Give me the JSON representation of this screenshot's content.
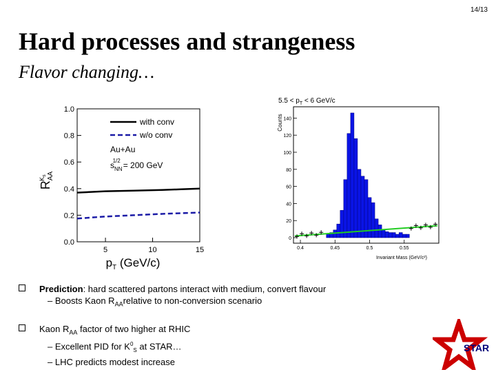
{
  "slide": {
    "page_number": "14/13",
    "title": "Hard processes and strangeness",
    "subtitle": "Flavor changing…"
  },
  "chart_data": [
    {
      "type": "line",
      "ylabel": "R_AA^Ks",
      "xlabel": "pT (GeV/c)",
      "xlim": [
        2,
        15
      ],
      "ylim": [
        0.0,
        1.0
      ],
      "x_ticks": [
        "5",
        "10",
        "15"
      ],
      "y_ticks": [
        "0.0",
        "0.2",
        "0.4",
        "0.6",
        "0.8",
        "1.0"
      ],
      "legend": [
        "with conv",
        "w/o conv"
      ],
      "annotations": [
        "Au+Au",
        "s_NN^1/2 = 200 GeV"
      ],
      "series": [
        {
          "name": "with conv",
          "x": [
            2,
            5,
            8,
            11,
            13,
            15
          ],
          "values": [
            0.37,
            0.38,
            0.385,
            0.39,
            0.395,
            0.4
          ]
        },
        {
          "name": "w/o conv",
          "x": [
            2,
            5,
            8,
            11,
            13,
            15
          ],
          "values": [
            0.175,
            0.19,
            0.2,
            0.21,
            0.215,
            0.22
          ]
        }
      ]
    },
    {
      "type": "bar",
      "title": "5.5 < pT < 6 GeV/c",
      "ylabel": "Counts",
      "xlabel": "Invariant Mass (GeV/c²)",
      "xlim": [
        0.4,
        0.6
      ],
      "ylim": [
        0,
        150
      ],
      "x_ticks": [
        "0.4",
        "0.45",
        "0.5",
        "0.55"
      ],
      "y_ticks": [
        "0",
        "20",
        "40",
        "60",
        "80",
        "100",
        "120",
        "140"
      ],
      "categories": [
        "0.440",
        "0.445",
        "0.450",
        "0.455",
        "0.460",
        "0.465",
        "0.470",
        "0.475",
        "0.480",
        "0.485",
        "0.490",
        "0.495",
        "0.500",
        "0.505",
        "0.510",
        "0.515",
        "0.520",
        "0.525",
        "0.530",
        "0.535",
        "0.540",
        "0.545",
        "0.550",
        "0.555"
      ],
      "values": [
        4,
        6,
        9,
        16,
        32,
        68,
        122,
        146,
        116,
        80,
        72,
        68,
        47,
        41,
        22,
        15,
        9,
        7,
        6,
        6,
        4,
        6,
        4,
        4
      ],
      "background_fit": [
        2,
        14
      ]
    }
  ],
  "bullets": [
    {
      "bold": "Prediction",
      "text": ": hard scattered partons interact with medium, convert flavour",
      "subs": [
        {
          "pre": "– Boosts Kaon R",
          "sub": "AA",
          "post": "relative to non-conversion scenario"
        }
      ]
    },
    {
      "pre": "Kaon R",
      "sub": "AA",
      "post": " factor of two higher at RHIC",
      "subs": [
        {
          "pre": "– Excellent PID for K",
          "sup": "0",
          "sub": "S",
          "post": " at STAR…"
        },
        {
          "text": "– LHC predicts modest increase"
        }
      ]
    }
  ],
  "logo": {
    "text": "STAR",
    "color": "#cc0000"
  }
}
